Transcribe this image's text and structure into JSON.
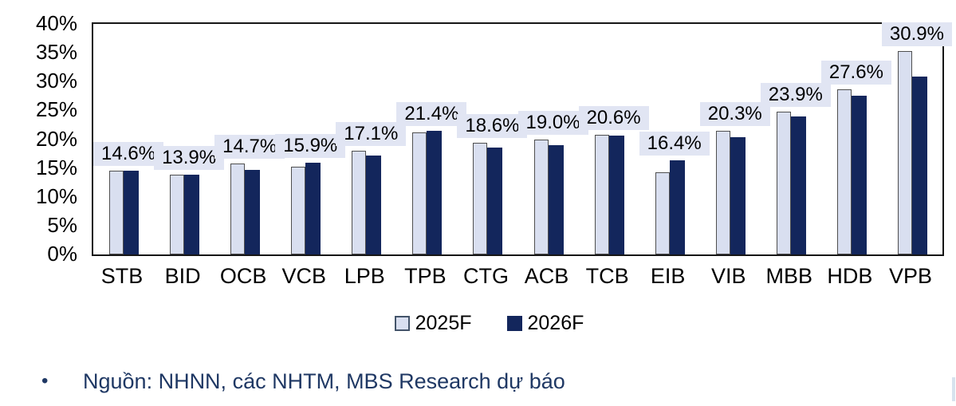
{
  "chart_data": {
    "type": "bar",
    "title": "",
    "categories": [
      "STB",
      "BID",
      "OCB",
      "VCB",
      "LPB",
      "TPB",
      "CTG",
      "ACB",
      "TCB",
      "EIB",
      "VIB",
      "MBB",
      "HDB",
      "VPB"
    ],
    "series": [
      {
        "name": "2025F",
        "color": "#d9dff0",
        "border_color": "#4f4f4f",
        "values": [
          14.5,
          13.9,
          15.8,
          15.2,
          18.0,
          21.2,
          19.4,
          20.0,
          20.8,
          14.2,
          21.4,
          24.8,
          28.6,
          35.3
        ]
      },
      {
        "name": "2026F",
        "color": "#13265c",
        "values": [
          14.6,
          13.9,
          14.7,
          15.9,
          17.1,
          21.4,
          18.6,
          19.0,
          20.6,
          16.4,
          20.3,
          23.9,
          27.6,
          30.9
        ]
      }
    ],
    "data_labels": [
      "14.6%",
      "13.9%",
      "14.7%",
      "15.9%",
      "17.1%",
      "21.4%",
      "18.6%",
      "19.0%",
      "20.6%",
      "16.4%",
      "20.3%",
      "23.9%",
      "27.6%",
      "30.9%"
    ],
    "data_label_series": "2026F",
    "data_label_bg": "#e1e5f3",
    "ylim": [
      0,
      40
    ],
    "ytick_labels": [
      "40%",
      "35%",
      "30%",
      "25%",
      "20%",
      "15%",
      "10%",
      "5%",
      "0%"
    ],
    "grid": false,
    "legend_position": "bottom",
    "plot_border_color": "#161616"
  },
  "legend": {
    "items": [
      {
        "label": "2025F"
      },
      {
        "label": "2026F"
      }
    ]
  },
  "source_note": {
    "bullet": "•",
    "text": "Nguồn: NHNN, các NHTM, MBS Research dự báo"
  }
}
